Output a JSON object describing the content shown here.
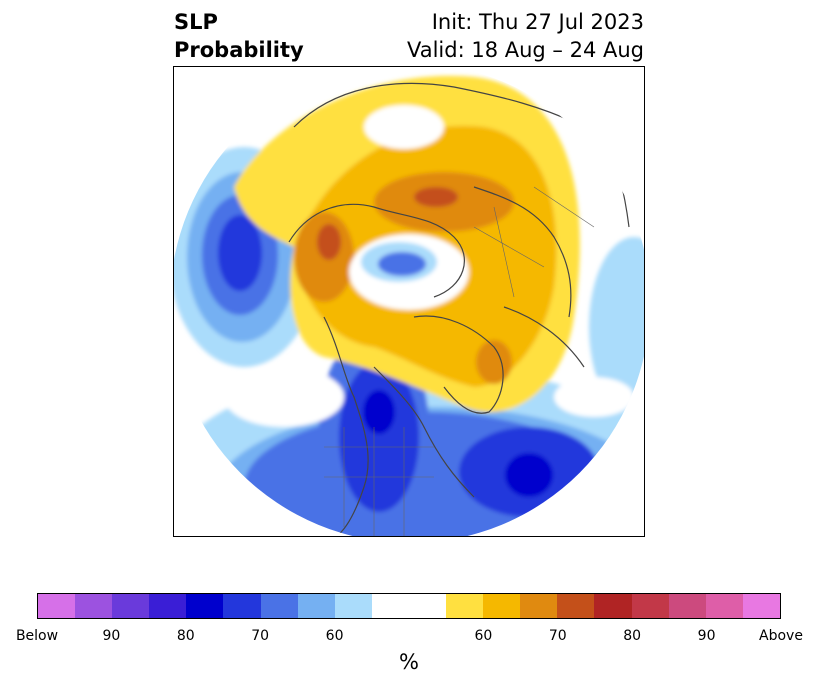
{
  "title": {
    "left_line1": "SLP",
    "left_line2": "Probability",
    "right_line1": "Init: Thu 27 Jul 2023",
    "right_line2": "Valid: 18 Aug – 24 Aug"
  },
  "map": {
    "projection": "north polar stereographic",
    "region": "Northern Hemisphere"
  },
  "colorbar": {
    "unit": "%",
    "colors": [
      "#d670e8",
      "#9c52e0",
      "#6a3adb",
      "#3a1ed6",
      "#0000cd",
      "#2337dc",
      "#4a72e6",
      "#75b0f2",
      "#aadcfb",
      "#ffffff",
      "#ffe040",
      "#f5b800",
      "#e08a10",
      "#c4501a",
      "#b02424",
      "#c23848",
      "#cc4a7e",
      "#de5ea8",
      "#e878e2"
    ],
    "ticks": [
      "Below",
      "90",
      "80",
      "70",
      "60",
      "60",
      "70",
      "80",
      "90",
      "Above"
    ]
  }
}
